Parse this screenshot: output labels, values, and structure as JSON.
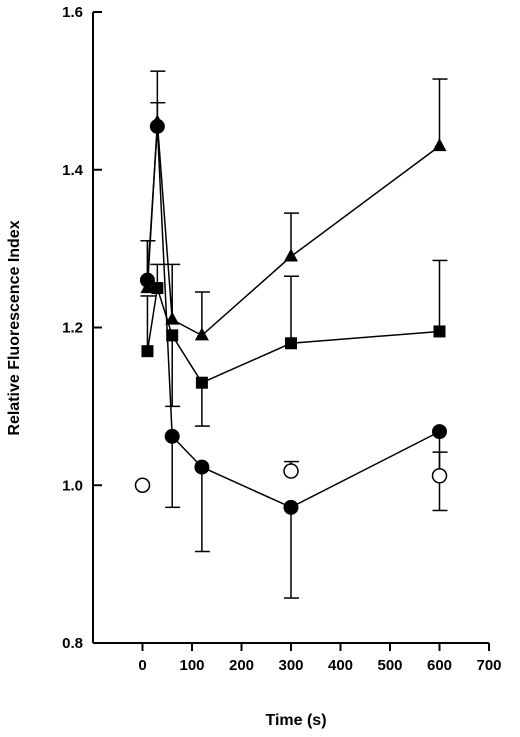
{
  "chart_data": {
    "type": "scatter",
    "title": "",
    "xlabel": "Time (s)",
    "ylabel": "Relative Fluorescence Index",
    "xlim": [
      -100,
      700
    ],
    "ylim": [
      0.8,
      1.6
    ],
    "x_ticks": [
      0,
      100,
      200,
      300,
      400,
      500,
      600,
      700
    ],
    "x_tick_labels": [
      "0",
      "100",
      "200",
      "300",
      "400",
      "500",
      "600",
      "700"
    ],
    "y_ticks": [
      0.8,
      1.0,
      1.2,
      1.4,
      1.6
    ],
    "y_tick_labels": [
      "0.8",
      "1.0",
      "1.2",
      "1.4",
      "1.6"
    ],
    "grid": false,
    "legend": "none",
    "series": [
      {
        "marker": "triangle-filled",
        "connected": true,
        "points": [
          {
            "x": 10,
            "y": 1.25,
            "err": 0.06
          },
          {
            "x": 30,
            "y": 1.46,
            "err": 0.065
          },
          {
            "x": 60,
            "y": 1.21,
            "err": 0.07
          },
          {
            "x": 120,
            "y": 1.19,
            "err": 0.055
          },
          {
            "x": 300,
            "y": 1.29,
            "err": 0.055
          },
          {
            "x": 600,
            "y": 1.43,
            "err": 0.085
          }
        ]
      },
      {
        "marker": "square-filled",
        "connected": true,
        "points": [
          {
            "x": 10,
            "y": 1.17,
            "err": 0.07
          },
          {
            "x": 30,
            "y": 1.25,
            "err": 0.03
          },
          {
            "x": 60,
            "y": 1.19,
            "err": 0.09
          },
          {
            "x": 120,
            "y": 1.13,
            "err": 0.055
          },
          {
            "x": 300,
            "y": 1.18,
            "err": 0.085
          },
          {
            "x": 600,
            "y": 1.195,
            "err": 0.09
          }
        ]
      },
      {
        "marker": "circle-filled",
        "connected": true,
        "points": [
          {
            "x": 10,
            "y": 1.26,
            "err": 0.05
          },
          {
            "x": 30,
            "y": 1.455,
            "err": 0.03
          },
          {
            "x": 60,
            "y": 1.062,
            "err": 0.09
          },
          {
            "x": 120,
            "y": 1.023,
            "err": 0.107
          },
          {
            "x": 300,
            "y": 0.972,
            "err": 0.115
          },
          {
            "x": 600,
            "y": 1.068,
            "err": 0.1
          }
        ]
      },
      {
        "marker": "circle-open",
        "connected": false,
        "points": [
          {
            "x": 0,
            "y": 1.0,
            "err": 0
          },
          {
            "x": 300,
            "y": 1.018,
            "err": 0.012
          },
          {
            "x": 600,
            "y": 1.012,
            "err": 0.03
          }
        ]
      }
    ]
  }
}
